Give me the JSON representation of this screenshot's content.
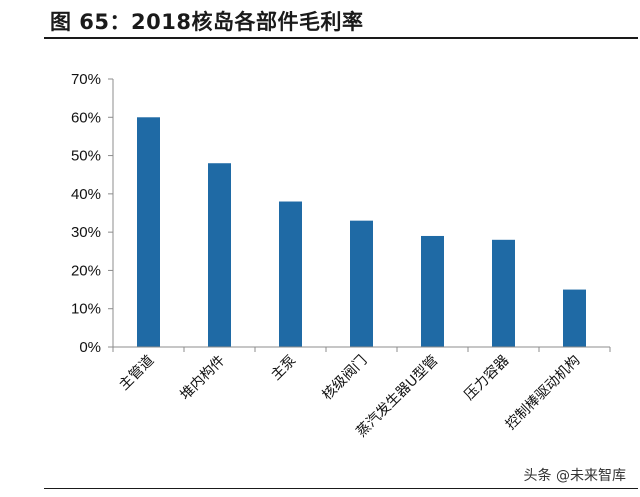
{
  "header": {
    "title": "图 65：2018核岛各部件毛利率"
  },
  "watermark": "头条 @未来智库",
  "colors": {
    "bar": "#1f6aa5",
    "axis": "#8c8c8c",
    "rule": "#1a1a1a"
  },
  "chart_data": {
    "type": "bar",
    "title": "2018核岛各部件毛利率",
    "categories": [
      "主管道",
      "堆内构件",
      "主泵",
      "核级阀门",
      "蒸汽发生器U型管",
      "压力容器",
      "控制棒驱动机构"
    ],
    "values": [
      60,
      48,
      38,
      33,
      29,
      28,
      15
    ],
    "unit": "%",
    "ylim": [
      0,
      70
    ],
    "yticks": [
      0,
      10,
      20,
      30,
      40,
      50,
      60,
      70
    ],
    "ytick_labels": [
      "0%",
      "10%",
      "20%",
      "30%",
      "40%",
      "50%",
      "60%",
      "70%"
    ],
    "grid": false,
    "legend": "none"
  }
}
